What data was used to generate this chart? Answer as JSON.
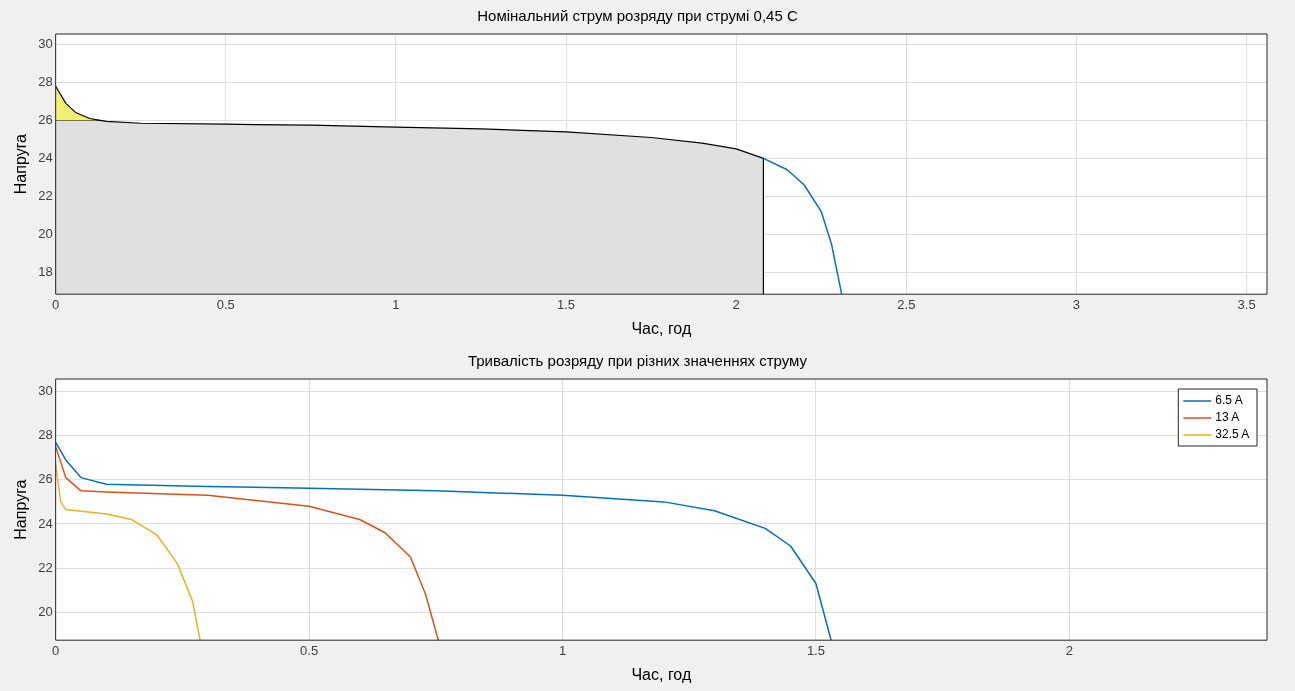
{
  "chart_data": [
    {
      "type": "line",
      "title": "Номінальний струм розряду при струмі 0,45 С",
      "xlabel": "Час, год",
      "ylabel": "Напруга",
      "xlim": [
        0,
        3.56
      ],
      "xticks": [
        0,
        0.5,
        1,
        1.5,
        2,
        2.5,
        3,
        3.5
      ],
      "ylim": [
        16.85,
        30.55
      ],
      "yticks": [
        18,
        20,
        22,
        24,
        26,
        28,
        30
      ],
      "grid": true,
      "legend": false,
      "series": [
        {
          "color": "#0072bd",
          "x": [
            2.08,
            2.15,
            2.2,
            2.25,
            2.28,
            2.31
          ],
          "values": [
            24.0,
            23.4,
            22.6,
            21.2,
            19.5,
            16.85
          ]
        },
        {
          "type": "area",
          "color": "#e0e0e0",
          "x": [
            0,
            0.13,
            0.15,
            0.25,
            0.5,
            0.75,
            1,
            1.25,
            1.5,
            1.75,
            1.9,
            2,
            2.08,
            2.08
          ],
          "values": [
            26.0,
            26.0,
            25.95,
            25.85,
            25.8,
            25.75,
            25.65,
            25.55,
            25.4,
            25.1,
            24.8,
            24.5,
            24.0,
            16.85
          ]
        },
        {
          "type": "area",
          "color": "#f0f070",
          "x": [
            0,
            0.03,
            0.06,
            0.1,
            0.13
          ],
          "values": [
            27.8,
            26.9,
            26.4,
            26.1,
            26.0
          ]
        }
      ]
    },
    {
      "type": "line",
      "title": "Тривалість розряду при різних значеннях струму",
      "xlabel": "Час, год",
      "ylabel": "Напруга",
      "xlim": [
        0,
        2.39
      ],
      "xticks": [
        0,
        0.5,
        1,
        1.5,
        2
      ],
      "ylim": [
        18.73,
        30.57
      ],
      "yticks": [
        20,
        22,
        24,
        26,
        28,
        30
      ],
      "grid": true,
      "legend": "top right",
      "series": [
        {
          "name": "6.5 A",
          "color": "#0072bd",
          "x": [
            0,
            0.02,
            0.05,
            0.1,
            0.3,
            0.5,
            0.75,
            1,
            1.2,
            1.3,
            1.4,
            1.45,
            1.5,
            1.53
          ],
          "values": [
            27.7,
            26.9,
            26.1,
            25.8,
            25.7,
            25.62,
            25.5,
            25.3,
            25.0,
            24.6,
            23.8,
            23.0,
            21.3,
            18.73
          ]
        },
        {
          "name": "13 A",
          "color": "#d95319",
          "x": [
            0,
            0.02,
            0.05,
            0.1,
            0.3,
            0.5,
            0.6,
            0.65,
            0.7,
            0.73,
            0.755
          ],
          "values": [
            27.5,
            26.1,
            25.5,
            25.45,
            25.3,
            24.8,
            24.2,
            23.6,
            22.5,
            20.8,
            18.73
          ]
        },
        {
          "name": "32.5 A",
          "color": "#edb120",
          "x": [
            0,
            0.01,
            0.02,
            0.1,
            0.15,
            0.2,
            0.24,
            0.27,
            0.285
          ],
          "values": [
            26.7,
            25.0,
            24.65,
            24.45,
            24.2,
            23.5,
            22.2,
            20.5,
            18.73
          ]
        }
      ]
    }
  ]
}
